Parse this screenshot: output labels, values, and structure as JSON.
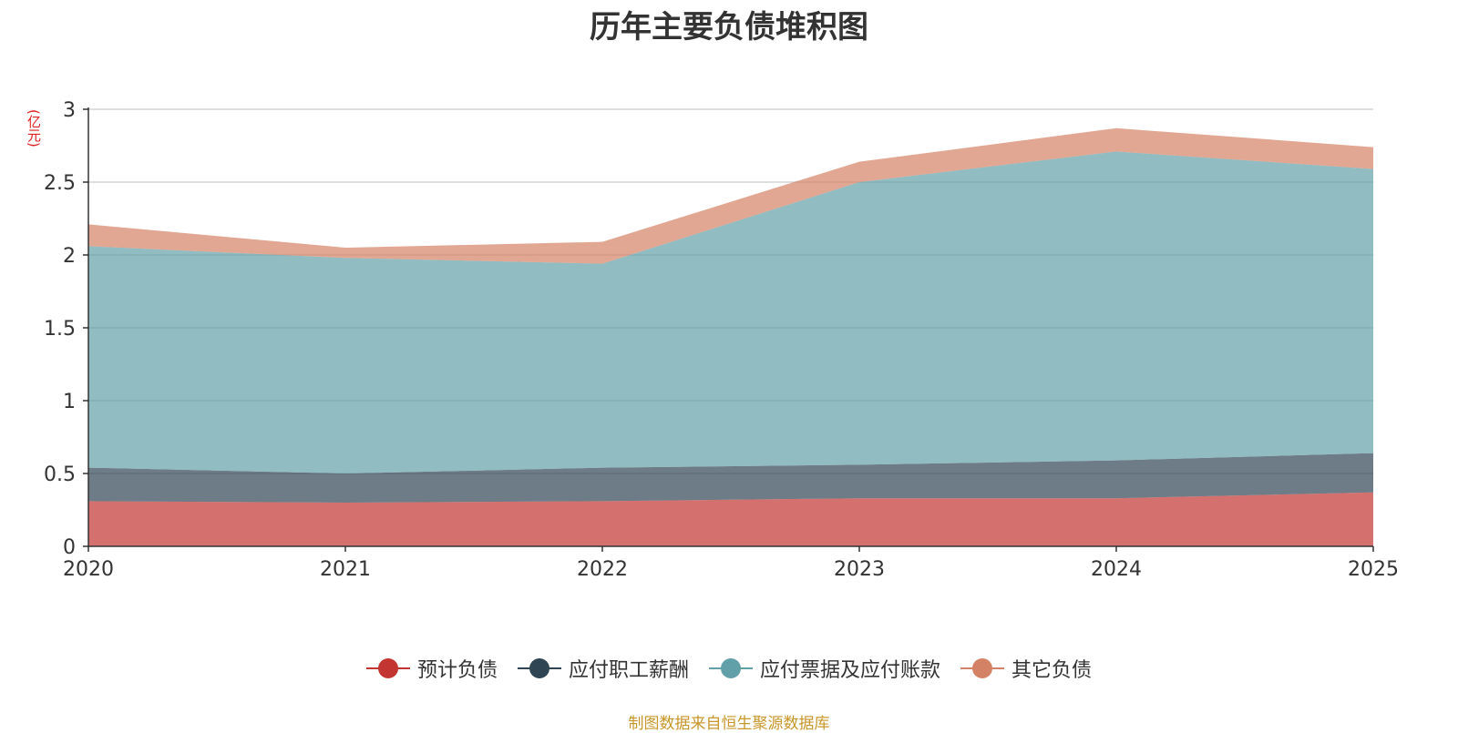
{
  "chart_data": {
    "type": "area",
    "stacked": true,
    "title": "历年主要负债堆积图",
    "unit_label": "(亿元)",
    "x": [
      "2020",
      "2021",
      "2022",
      "2023",
      "2024",
      "2025"
    ],
    "ylim": [
      0,
      3
    ],
    "yticks": [
      "0",
      "0.5",
      "1",
      "1.5",
      "2",
      "2.5",
      "3"
    ],
    "grid": true,
    "legend_position": "bottom",
    "series": [
      {
        "name": "预计负债",
        "color": "#c23531",
        "values": [
          0.31,
          0.3,
          0.31,
          0.33,
          0.33,
          0.37
        ]
      },
      {
        "name": "应付职工薪酬",
        "color": "#2f4554",
        "values": [
          0.23,
          0.2,
          0.23,
          0.23,
          0.26,
          0.27
        ]
      },
      {
        "name": "应付票据及应付账款",
        "color": "#61a0a8",
        "values": [
          1.52,
          1.48,
          1.4,
          1.94,
          2.12,
          1.95
        ]
      },
      {
        "name": "其它负债",
        "color": "#d48265",
        "values": [
          0.15,
          0.07,
          0.15,
          0.14,
          0.16,
          0.15
        ]
      }
    ],
    "source": "制图数据来自恒生聚源数据库"
  }
}
